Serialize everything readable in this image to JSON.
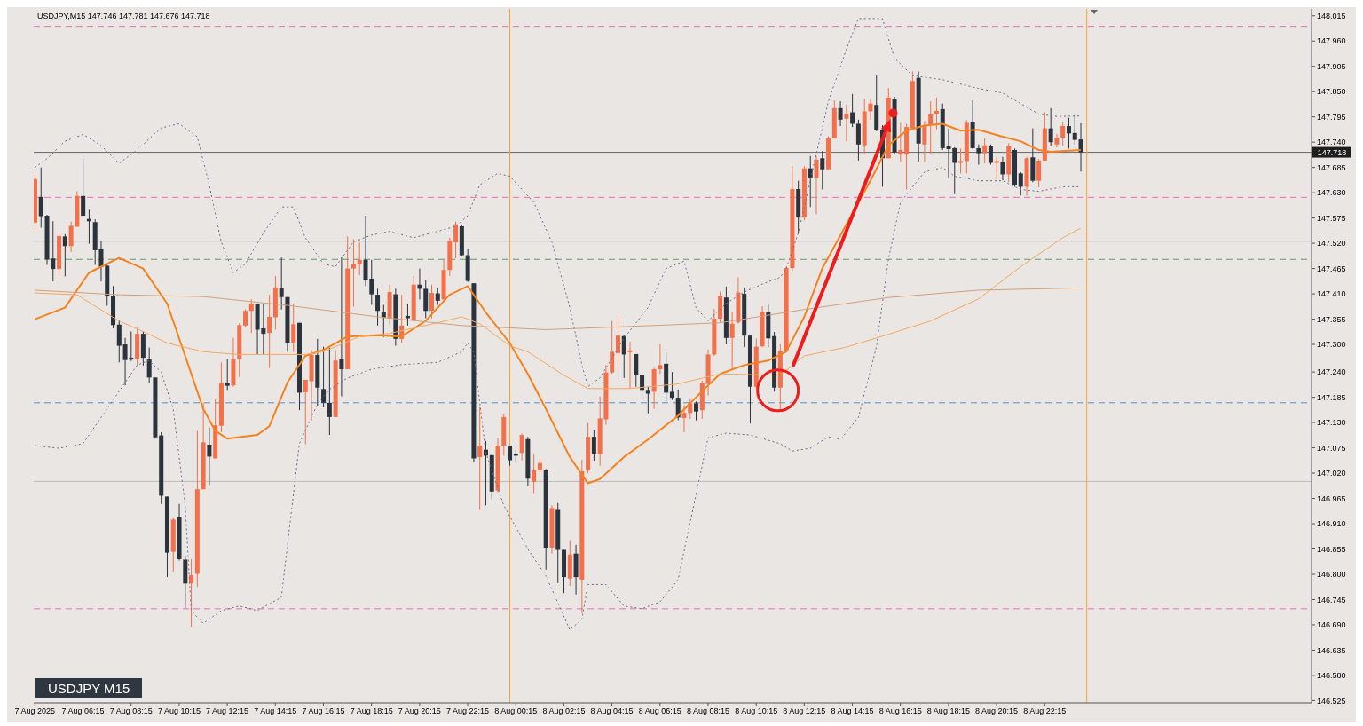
{
  "chart_data": {
    "type": "candlestick",
    "title": "USDJPY,M15 147.746 147.781 147.676 147.718",
    "x": [
      "2025-08-07T04:15",
      "2025-08-07T04:30",
      "2025-08-07T04:45",
      "2025-08-07T05:00",
      "2025-08-07T05:15",
      "2025-08-07T05:30",
      "2025-08-07T05:45",
      "2025-08-07T06:00",
      "2025-08-07T06:15",
      "2025-08-07T06:30",
      "2025-08-07T06:45",
      "2025-08-07T07:00",
      "2025-08-07T07:15",
      "2025-08-07T07:30",
      "2025-08-07T07:45",
      "2025-08-07T08:00",
      "2025-08-07T08:15",
      "2025-08-07T08:30",
      "2025-08-07T08:45",
      "2025-08-07T09:00",
      "2025-08-07T09:15",
      "2025-08-07T09:30",
      "2025-08-07T09:45",
      "2025-08-07T10:00",
      "2025-08-07T10:15",
      "2025-08-07T10:30",
      "2025-08-07T10:45",
      "2025-08-07T11:00",
      "2025-08-07T11:15",
      "2025-08-07T11:30",
      "2025-08-07T11:45",
      "2025-08-07T12:00",
      "2025-08-07T12:15",
      "2025-08-07T12:30",
      "2025-08-07T12:45",
      "2025-08-07T13:00",
      "2025-08-07T13:15",
      "2025-08-07T13:30",
      "2025-08-07T13:45",
      "2025-08-07T14:00",
      "2025-08-07T14:15",
      "2025-08-07T14:30",
      "2025-08-07T14:45",
      "2025-08-07T15:00",
      "2025-08-07T15:15",
      "2025-08-07T15:30",
      "2025-08-07T15:45",
      "2025-08-07T16:00",
      "2025-08-07T16:15",
      "2025-08-07T16:30",
      "2025-08-07T16:45",
      "2025-08-07T17:00",
      "2025-08-07T17:15",
      "2025-08-07T17:30",
      "2025-08-07T17:45",
      "2025-08-07T18:00",
      "2025-08-07T18:15",
      "2025-08-07T18:30",
      "2025-08-07T18:45",
      "2025-08-07T19:00",
      "2025-08-07T19:15",
      "2025-08-07T19:30",
      "2025-08-07T19:45",
      "2025-08-07T20:00",
      "2025-08-07T20:15",
      "2025-08-07T20:30",
      "2025-08-07T20:45",
      "2025-08-07T21:00",
      "2025-08-07T21:15",
      "2025-08-07T21:30",
      "2025-08-07T21:45",
      "2025-08-07T22:00",
      "2025-08-07T22:15",
      "2025-08-07T22:30",
      "2025-08-07T22:45",
      "2025-08-07T23:00",
      "2025-08-07T23:15",
      "2025-08-07T23:30",
      "2025-08-07T23:45",
      "2025-08-08T00:00",
      "2025-08-08T00:15",
      "2025-08-08T00:30",
      "2025-08-08T00:45",
      "2025-08-08T01:00",
      "2025-08-08T01:15",
      "2025-08-08T01:30",
      "2025-08-08T01:45",
      "2025-08-08T02:00",
      "2025-08-08T02:15",
      "2025-08-08T02:30",
      "2025-08-08T02:45",
      "2025-08-08T03:00",
      "2025-08-08T03:15",
      "2025-08-08T03:30",
      "2025-08-08T03:45",
      "2025-08-08T04:00",
      "2025-08-08T04:15",
      "2025-08-08T04:30",
      "2025-08-08T04:45",
      "2025-08-08T05:00",
      "2025-08-08T05:15",
      "2025-08-08T05:30",
      "2025-08-08T05:45",
      "2025-08-08T06:00",
      "2025-08-08T06:15",
      "2025-08-08T06:30",
      "2025-08-08T06:45",
      "2025-08-08T07:00",
      "2025-08-08T07:15",
      "2025-08-08T07:30",
      "2025-08-08T07:45",
      "2025-08-08T08:00",
      "2025-08-08T08:15",
      "2025-08-08T08:30",
      "2025-08-08T08:45",
      "2025-08-08T09:00",
      "2025-08-08T09:15",
      "2025-08-08T09:30",
      "2025-08-08T09:45",
      "2025-08-08T10:00",
      "2025-08-08T10:15",
      "2025-08-08T10:30",
      "2025-08-08T10:45",
      "2025-08-08T11:00",
      "2025-08-08T11:15",
      "2025-08-08T11:30",
      "2025-08-08T11:45",
      "2025-08-08T12:00",
      "2025-08-08T12:15",
      "2025-08-08T12:30",
      "2025-08-08T12:45",
      "2025-08-08T13:00",
      "2025-08-08T13:15",
      "2025-08-08T13:30",
      "2025-08-08T13:45",
      "2025-08-08T14:00",
      "2025-08-08T14:15",
      "2025-08-08T14:30",
      "2025-08-08T14:45",
      "2025-08-08T15:00",
      "2025-08-08T15:15",
      "2025-08-08T15:30",
      "2025-08-08T15:45",
      "2025-08-08T16:00",
      "2025-08-08T16:15",
      "2025-08-08T16:30",
      "2025-08-08T16:45",
      "2025-08-08T17:00",
      "2025-08-08T17:15",
      "2025-08-08T17:30",
      "2025-08-08T17:45",
      "2025-08-08T18:00",
      "2025-08-08T18:15",
      "2025-08-08T18:30",
      "2025-08-08T18:45",
      "2025-08-08T19:00",
      "2025-08-08T19:15",
      "2025-08-08T19:30",
      "2025-08-08T19:45",
      "2025-08-08T20:00",
      "2025-08-08T20:15",
      "2025-08-08T20:30",
      "2025-08-08T20:45",
      "2025-08-08T21:00",
      "2025-08-08T21:15",
      "2025-08-08T21:30",
      "2025-08-08T21:45",
      "2025-08-08T22:00",
      "2025-08-08T22:15",
      "2025-08-08T22:30",
      "2025-08-08T22:45",
      "2025-08-08T23:00",
      "2025-08-08T23:15",
      "2025-08-08T23:30",
      "2025-08-08T23:45"
    ],
    "ohlc": [
      [
        147.565,
        147.67,
        147.55,
        147.66
      ],
      [
        147.621,
        147.685,
        147.554,
        147.579
      ],
      [
        147.58,
        147.582,
        147.473,
        147.485
      ],
      [
        147.487,
        147.568,
        147.437,
        147.464
      ],
      [
        147.464,
        147.547,
        147.448,
        147.536
      ],
      [
        147.535,
        147.54,
        147.448,
        147.514
      ],
      [
        147.514,
        147.567,
        147.501,
        147.558
      ],
      [
        147.556,
        147.633,
        147.556,
        147.623
      ],
      [
        147.623,
        147.704,
        147.58,
        147.58
      ],
      [
        147.573,
        147.593,
        147.519,
        147.568
      ],
      [
        147.566,
        147.572,
        147.473,
        147.505
      ],
      [
        147.507,
        147.526,
        147.437,
        147.469
      ],
      [
        147.471,
        147.476,
        147.384,
        147.406
      ],
      [
        147.406,
        147.427,
        147.335,
        147.342
      ],
      [
        147.343,
        147.353,
        147.261,
        147.297
      ],
      [
        147.3,
        147.314,
        147.211,
        147.266
      ],
      [
        147.271,
        147.328,
        147.264,
        147.267
      ],
      [
        147.268,
        147.338,
        147.254,
        147.323
      ],
      [
        147.323,
        147.328,
        147.254,
        147.271
      ],
      [
        147.268,
        147.293,
        147.215,
        147.228
      ],
      [
        147.228,
        147.228,
        147.095,
        147.098
      ],
      [
        147.102,
        147.109,
        146.953,
        146.971
      ],
      [
        146.969,
        146.969,
        146.794,
        146.847
      ],
      [
        146.849,
        146.922,
        146.805,
        146.919
      ],
      [
        146.924,
        146.953,
        146.83,
        146.833
      ],
      [
        146.832,
        146.84,
        146.727,
        146.78
      ],
      [
        146.78,
        146.833,
        146.685,
        146.798
      ],
      [
        146.801,
        147.112,
        146.773,
        146.985
      ],
      [
        146.985,
        147.173,
        146.985,
        147.087
      ],
      [
        147.082,
        147.119,
        146.992,
        147.056
      ],
      [
        147.052,
        147.181,
        147.052,
        147.124
      ],
      [
        147.123,
        147.261,
        147.109,
        147.215
      ],
      [
        147.217,
        147.268,
        147.201,
        147.21
      ],
      [
        147.211,
        147.314,
        147.208,
        147.268
      ],
      [
        147.268,
        147.346,
        147.229,
        147.342
      ],
      [
        147.341,
        147.376,
        147.338,
        147.373
      ],
      [
        147.373,
        147.398,
        147.325,
        147.389
      ],
      [
        147.389,
        147.389,
        147.277,
        147.332
      ],
      [
        147.335,
        147.389,
        147.277,
        147.323
      ],
      [
        147.325,
        147.408,
        147.249,
        147.36
      ],
      [
        147.359,
        147.449,
        147.332,
        147.424
      ],
      [
        147.423,
        147.489,
        147.376,
        147.403
      ],
      [
        147.403,
        147.403,
        147.284,
        147.303
      ],
      [
        147.303,
        147.389,
        147.284,
        147.344
      ],
      [
        147.347,
        147.347,
        147.157,
        147.195
      ],
      [
        147.196,
        147.223,
        147.083,
        147.223
      ],
      [
        147.22,
        147.288,
        147.134,
        147.277
      ],
      [
        147.277,
        147.312,
        147.166,
        147.206
      ],
      [
        147.203,
        147.295,
        147.163,
        147.173
      ],
      [
        147.173,
        147.293,
        147.103,
        147.142
      ],
      [
        147.142,
        147.287,
        147.142,
        147.265
      ],
      [
        147.268,
        147.489,
        147.187,
        147.246
      ],
      [
        147.246,
        147.535,
        147.246,
        147.465
      ],
      [
        147.465,
        147.529,
        147.382,
        147.475
      ],
      [
        147.475,
        147.522,
        147.451,
        147.484
      ],
      [
        147.484,
        147.58,
        147.427,
        147.441
      ],
      [
        147.443,
        147.484,
        147.386,
        147.409
      ],
      [
        147.408,
        147.421,
        147.341,
        147.373
      ],
      [
        147.37,
        147.386,
        147.316,
        147.358
      ],
      [
        147.357,
        147.43,
        147.344,
        147.414
      ],
      [
        147.409,
        147.421,
        147.297,
        147.312
      ],
      [
        147.312,
        147.408,
        147.303,
        147.341
      ],
      [
        147.362,
        147.389,
        147.341,
        147.357
      ],
      [
        147.354,
        147.449,
        147.351,
        147.43
      ],
      [
        147.43,
        147.465,
        147.398,
        147.421
      ],
      [
        147.421,
        147.44,
        147.357,
        147.373
      ],
      [
        147.373,
        147.43,
        147.357,
        147.412
      ],
      [
        147.411,
        147.424,
        147.386,
        147.395
      ],
      [
        147.398,
        147.484,
        147.395,
        147.462
      ],
      [
        147.462,
        147.532,
        147.449,
        147.526
      ],
      [
        147.522,
        147.567,
        147.487,
        147.561
      ],
      [
        147.557,
        147.561,
        147.491,
        147.494
      ],
      [
        147.494,
        147.507,
        147.436,
        147.438
      ],
      [
        147.433,
        147.433,
        147.045,
        147.052
      ],
      [
        147.055,
        147.163,
        146.94,
        147.08
      ],
      [
        147.071,
        147.09,
        146.95,
        147.058
      ],
      [
        147.059,
        147.061,
        146.963,
        146.98
      ],
      [
        146.982,
        147.096,
        146.978,
        147.08
      ],
      [
        147.08,
        147.148,
        147.058,
        147.142
      ],
      [
        147.08,
        147.08,
        147.036,
        147.048
      ],
      [
        147.061,
        147.071,
        147.045,
        147.058
      ],
      [
        147.064,
        147.106,
        147.048,
        147.103
      ],
      [
        147.094,
        147.099,
        146.991,
        147.008
      ],
      [
        147.001,
        147.061,
        146.975,
        147.026
      ],
      [
        147.026,
        147.052,
        147.017,
        147.042
      ],
      [
        147.026,
        147.029,
        146.81,
        146.858
      ],
      [
        146.858,
        146.95,
        146.845,
        146.944
      ],
      [
        146.94,
        146.955,
        146.781,
        146.853
      ],
      [
        146.853,
        146.853,
        146.759,
        146.794
      ],
      [
        146.791,
        146.874,
        146.775,
        146.843
      ],
      [
        146.845,
        146.864,
        146.756,
        146.794
      ],
      [
        146.788,
        147.049,
        146.715,
        147.024
      ],
      [
        147.026,
        147.129,
        147.02,
        147.099
      ],
      [
        147.099,
        147.114,
        147.047,
        147.061
      ],
      [
        147.061,
        147.187,
        147.036,
        147.139
      ],
      [
        147.137,
        147.255,
        147.125,
        147.239
      ],
      [
        147.239,
        147.351,
        147.236,
        147.284
      ],
      [
        147.281,
        147.363,
        147.249,
        147.319
      ],
      [
        147.318,
        147.319,
        147.227,
        147.278
      ],
      [
        147.283,
        147.306,
        147.204,
        147.287
      ],
      [
        147.279,
        147.279,
        147.208,
        147.233
      ],
      [
        147.233,
        147.233,
        147.173,
        147.201
      ],
      [
        147.201,
        147.208,
        147.15,
        147.193
      ],
      [
        147.197,
        147.249,
        147.16,
        147.246
      ],
      [
        147.246,
        147.3,
        147.236,
        147.255
      ],
      [
        147.258,
        147.284,
        147.176,
        147.195
      ],
      [
        147.197,
        147.24,
        147.179,
        147.184
      ],
      [
        147.184,
        147.202,
        147.135,
        147.141
      ],
      [
        147.14,
        147.167,
        147.109,
        147.151
      ],
      [
        147.151,
        147.183,
        147.138,
        147.172
      ],
      [
        147.172,
        147.176,
        147.135,
        147.154
      ],
      [
        147.157,
        147.221,
        147.138,
        147.217
      ],
      [
        147.214,
        147.289,
        147.189,
        147.278
      ],
      [
        147.278,
        147.377,
        147.275,
        147.356
      ],
      [
        147.356,
        147.415,
        147.348,
        147.405
      ],
      [
        147.402,
        147.426,
        147.3,
        147.314
      ],
      [
        147.314,
        147.37,
        147.246,
        147.345
      ],
      [
        147.348,
        147.446,
        147.345,
        147.413
      ],
      [
        147.41,
        147.424,
        147.294,
        147.319
      ],
      [
        147.319,
        147.319,
        147.128,
        147.208
      ],
      [
        147.208,
        147.313,
        147.205,
        147.295
      ],
      [
        147.296,
        147.383,
        147.294,
        147.37
      ],
      [
        147.37,
        147.389,
        147.294,
        147.313
      ],
      [
        147.318,
        147.327,
        147.197,
        147.206
      ],
      [
        147.206,
        147.3,
        147.159,
        147.286
      ],
      [
        147.286,
        147.469,
        147.284,
        147.466
      ],
      [
        147.466,
        147.688,
        147.46,
        147.638
      ],
      [
        147.638,
        147.656,
        147.541,
        147.576
      ],
      [
        147.576,
        147.688,
        147.57,
        147.683
      ],
      [
        147.683,
        147.71,
        147.599,
        147.662
      ],
      [
        147.663,
        147.71,
        147.583,
        147.702
      ],
      [
        147.705,
        147.721,
        147.637,
        147.681
      ],
      [
        147.681,
        147.753,
        147.681,
        147.748
      ],
      [
        147.748,
        147.831,
        147.748,
        147.814
      ],
      [
        147.814,
        147.829,
        147.775,
        147.789
      ],
      [
        147.791,
        147.822,
        147.742,
        147.802
      ],
      [
        147.805,
        147.845,
        147.773,
        147.78
      ],
      [
        147.78,
        147.789,
        147.7,
        147.735
      ],
      [
        147.733,
        147.835,
        147.713,
        147.807
      ],
      [
        147.807,
        147.834,
        147.789,
        147.824
      ],
      [
        147.821,
        147.885,
        147.764,
        147.767
      ],
      [
        147.767,
        147.777,
        147.643,
        147.705
      ],
      [
        147.705,
        147.858,
        147.705,
        147.837
      ],
      [
        147.835,
        147.839,
        147.713,
        147.718
      ],
      [
        147.714,
        147.782,
        147.697,
        147.723
      ],
      [
        147.713,
        147.78,
        147.637,
        147.773
      ],
      [
        147.77,
        147.894,
        147.77,
        147.873
      ],
      [
        147.88,
        147.894,
        147.697,
        147.737
      ],
      [
        147.735,
        147.786,
        147.697,
        147.775
      ],
      [
        147.777,
        147.829,
        147.713,
        147.801
      ],
      [
        147.801,
        147.837,
        147.767,
        147.808
      ],
      [
        147.812,
        147.824,
        147.723,
        147.727
      ],
      [
        147.731,
        147.77,
        147.662,
        147.725
      ],
      [
        147.727,
        147.729,
        147.627,
        147.695
      ],
      [
        147.695,
        147.726,
        147.672,
        147.699
      ],
      [
        147.699,
        147.788,
        147.672,
        147.782
      ],
      [
        147.784,
        147.831,
        147.725,
        147.727
      ],
      [
        147.727,
        147.735,
        147.691,
        147.716
      ],
      [
        147.716,
        147.748,
        147.694,
        147.733
      ],
      [
        147.731,
        147.735,
        147.691,
        147.695
      ],
      [
        147.695,
        147.708,
        147.659,
        147.699
      ],
      [
        147.697,
        147.708,
        147.657,
        147.67
      ],
      [
        147.67,
        147.738,
        147.653,
        147.732
      ],
      [
        147.723,
        147.726,
        147.643,
        147.646
      ],
      [
        147.672,
        147.675,
        147.624,
        147.643
      ],
      [
        147.643,
        147.708,
        147.624,
        147.705
      ],
      [
        147.707,
        147.77,
        147.653,
        147.656
      ],
      [
        147.656,
        147.703,
        147.642,
        147.7
      ],
      [
        147.7,
        147.805,
        147.7,
        147.77
      ],
      [
        147.77,
        147.814,
        147.732,
        147.74
      ],
      [
        147.735,
        147.758,
        147.729,
        147.75
      ],
      [
        147.75,
        147.783,
        147.732,
        147.775
      ],
      [
        147.775,
        147.793,
        147.726,
        147.759
      ],
      [
        147.76,
        147.799,
        147.735,
        147.745
      ],
      [
        147.746,
        147.781,
        147.676,
        147.718
      ]
    ],
    "colors": [
      "#f4704a",
      "#2b333d",
      "#2b333d",
      "#2b333d",
      "#f4704a",
      "#2b333d",
      "#f4704a",
      "#f4704a",
      "#2b333d",
      "#2b333d",
      "#2b333d",
      "#2b333d",
      "#2b333d",
      "#2b333d",
      "#2b333d",
      "#2b333d",
      "#2b333d",
      "#f4704a",
      "#2b333d",
      "#2b333d",
      "#2b333d",
      "#2b333d",
      "#2b333d",
      "#f4704a",
      "#2b333d",
      "#2b333d",
      "#f4704a",
      "#f4704a",
      "#f4704a",
      "#2b333d",
      "#f4704a",
      "#f4704a",
      "#2b333d",
      "#f4704a",
      "#f4704a",
      "#f4704a",
      "#f4704a",
      "#2b333d",
      "#2b333d",
      "#f4704a",
      "#f4704a",
      "#2b333d",
      "#2b333d",
      "#f4704a",
      "#2b333d",
      "#f4704a",
      "#f4704a",
      "#2b333d",
      "#2b333d",
      "#2b333d",
      "#f4704a",
      "#2b333d",
      "#f4704a",
      "#f4704a",
      "#f4704a",
      "#2b333d",
      "#2b333d",
      "#2b333d",
      "#2b333d",
      "#f4704a",
      "#2b333d",
      "#f4704a",
      "#2b333d",
      "#f4704a",
      "#2b333d",
      "#2b333d",
      "#f4704a",
      "#2b333d",
      "#f4704a",
      "#f4704a",
      "#f4704a",
      "#2b333d",
      "#2b333d",
      "#2b333d",
      "#f4704a",
      "#2b333d",
      "#2b333d",
      "#f4704a",
      "#f4704a",
      "#2b333d",
      "#2b333d",
      "#f4704a",
      "#2b333d",
      "#f4704a",
      "#f4704a",
      "#2b333d",
      "#f4704a",
      "#2b333d",
      "#2b333d",
      "#f4704a",
      "#2b333d",
      "#f4704a",
      "#f4704a",
      "#2b333d",
      "#f4704a",
      "#f4704a",
      "#f4704a",
      "#f4704a",
      "#2b333d",
      "#f4704a",
      "#2b333d",
      "#2b333d",
      "#2b333d",
      "#f4704a",
      "#f4704a",
      "#2b333d",
      "#2b333d",
      "#2b333d",
      "#f4704a",
      "#f4704a",
      "#2b333d",
      "#f4704a",
      "#f4704a",
      "#f4704a",
      "#f4704a",
      "#2b333d",
      "#f4704a",
      "#f4704a",
      "#2b333d",
      "#2b333d",
      "#f4704a",
      "#f4704a",
      "#2b333d",
      "#2b333d",
      "#f4704a",
      "#f4704a",
      "#f4704a",
      "#2b333d",
      "#f4704a",
      "#2b333d",
      "#f4704a",
      "#2b333d",
      "#f4704a",
      "#f4704a",
      "#2b333d",
      "#f4704a",
      "#2b333d",
      "#2b333d",
      "#f4704a",
      "#f4704a",
      "#2b333d",
      "#2b333d",
      "#f4704a",
      "#2b333d",
      "#f4704a",
      "#f4704a",
      "#f4704a",
      "#2b333d",
      "#f4704a",
      "#f4704a",
      "#f4704a",
      "#2b333d",
      "#2b333d",
      "#2b333d",
      "#f4704a",
      "#f4704a",
      "#2b333d",
      "#2b333d",
      "#f4704a",
      "#2b333d",
      "#f4704a",
      "#2b333d",
      "#f4704a",
      "#2b333d",
      "#2b333d",
      "#f4704a",
      "#2b333d",
      "#f4704a",
      "#f4704a",
      "#2b333d",
      "#f4704a",
      "#f4704a",
      "#2b333d",
      "#2b333d",
      "#2b333d"
    ],
    "series": [
      {
        "type": "line",
        "color": "#f5821f",
        "line_style": "solid",
        "x": [
          "2025-08-07T04:15",
          "2025-08-07T05:30",
          "2025-08-07T06:30",
          "2025-08-07T07:45",
          "2025-08-07T08:45",
          "2025-08-07T09:45",
          "2025-08-07T10:30",
          "2025-08-07T11:15",
          "2025-08-07T11:45",
          "2025-08-07T12:15",
          "2025-08-07T13:30",
          "2025-08-07T14:00",
          "2025-08-07T14:45",
          "2025-08-07T15:30",
          "2025-08-07T16:15",
          "2025-08-07T17:15",
          "2025-08-07T18:30",
          "2025-08-07T19:30",
          "2025-08-07T20:30",
          "2025-08-07T21:30",
          "2025-08-07T22:15",
          "2025-08-07T23:00",
          "2025-08-08T00:00",
          "2025-08-08T00:45",
          "2025-08-08T01:30",
          "2025-08-08T02:30",
          "2025-08-08T03:15",
          "2025-08-08T03:45",
          "2025-08-08T04:45",
          "2025-08-08T05:45",
          "2025-08-08T07:00",
          "2025-08-08T08:00",
          "2025-08-08T08:45",
          "2025-08-08T09:45",
          "2025-08-08T10:45",
          "2025-08-08T11:30",
          "2025-08-08T12:15",
          "2025-08-08T13:00",
          "2025-08-08T14:00",
          "2025-08-08T15:00",
          "2025-08-08T15:45",
          "2025-08-08T16:30",
          "2025-08-08T17:15",
          "2025-08-08T18:00",
          "2025-08-08T18:45",
          "2025-08-08T19:30",
          "2025-08-08T20:30",
          "2025-08-08T21:15",
          "2025-08-08T22:00",
          "2025-08-08T22:30",
          "2025-08-08T23:45"
        ],
        "values": [
          147.355,
          147.38,
          147.456,
          147.488,
          147.465,
          147.389,
          147.275,
          147.16,
          147.112,
          147.095,
          147.103,
          147.122,
          147.217,
          147.275,
          147.288,
          147.317,
          147.32,
          147.317,
          147.351,
          147.408,
          147.427,
          147.37,
          147.303,
          147.236,
          147.16,
          147.055,
          146.998,
          147.007,
          147.055,
          147.093,
          147.145,
          147.198,
          147.236,
          147.255,
          147.265,
          147.284,
          147.36,
          147.465,
          147.561,
          147.656,
          147.733,
          147.765,
          147.776,
          147.78,
          147.765,
          147.767,
          147.752,
          147.742,
          147.723,
          147.719,
          147.723
        ]
      },
      {
        "type": "line",
        "color": "#f7a860",
        "line_style": "solid",
        "x": [
          "2025-08-07T04:15",
          "2025-08-07T06:00",
          "2025-08-07T07:45",
          "2025-08-07T08:45",
          "2025-08-07T09:45",
          "2025-08-07T11:15",
          "2025-08-07T12:45",
          "2025-08-07T15:30",
          "2025-08-07T16:15",
          "2025-08-07T17:45",
          "2025-08-07T19:00",
          "2025-08-07T21:00",
          "2025-08-07T22:00",
          "2025-08-07T22:45",
          "2025-08-08T00:00",
          "2025-08-08T00:45",
          "2025-08-08T02:15",
          "2025-08-08T03:15",
          "2025-08-08T05:00",
          "2025-08-08T07:00",
          "2025-08-08T08:45",
          "2025-08-08T11:15",
          "2025-08-08T12:15",
          "2025-08-08T14:00",
          "2025-08-08T15:45",
          "2025-08-08T17:30",
          "2025-08-08T19:30",
          "2025-08-08T21:15",
          "2025-08-08T23:00",
          "2025-08-08T23:45"
        ],
        "values": [
          147.412,
          147.408,
          147.351,
          147.328,
          147.303,
          147.284,
          147.278,
          147.278,
          147.284,
          147.317,
          147.324,
          147.347,
          147.36,
          147.345,
          147.297,
          147.284,
          147.233,
          147.204,
          147.204,
          147.214,
          147.236,
          147.233,
          147.275,
          147.294,
          147.322,
          147.351,
          147.399,
          147.469,
          147.532,
          147.553
        ]
      },
      {
        "type": "line",
        "color": "#d4a07a",
        "line_style": "solid",
        "x": [
          "2025-08-07T04:15",
          "2025-08-07T07:45",
          "2025-08-07T11:15",
          "2025-08-07T14:45",
          "2025-08-07T18:30",
          "2025-08-07T22:00",
          "2025-08-08T01:30",
          "2025-08-08T05:00",
          "2025-08-08T08:45",
          "2025-08-08T12:15",
          "2025-08-08T15:45",
          "2025-08-08T19:30",
          "2025-08-08T23:45"
        ],
        "values": [
          147.418,
          147.408,
          147.404,
          147.385,
          147.36,
          147.341,
          147.332,
          147.339,
          147.347,
          147.376,
          147.402,
          147.418,
          147.423
        ]
      },
      {
        "type": "line",
        "color": "#6f6a8c",
        "line_style": "dotted",
        "x": [
          "2025-08-07T04:15",
          "2025-08-07T04:45",
          "2025-08-07T05:30",
          "2025-08-07T06:15",
          "2025-08-07T07:00",
          "2025-08-07T07:45",
          "2025-08-07T08:30",
          "2025-08-07T09:30",
          "2025-08-07T10:15",
          "2025-08-07T11:00",
          "2025-08-07T11:30",
          "2025-08-07T12:00",
          "2025-08-07T12:30",
          "2025-08-07T13:00",
          "2025-08-07T13:45",
          "2025-08-07T14:30",
          "2025-08-07T15:00",
          "2025-08-07T15:30",
          "2025-08-07T16:15",
          "2025-08-07T16:45",
          "2025-08-07T17:30",
          "2025-08-07T18:15",
          "2025-08-07T19:00",
          "2025-08-07T20:00",
          "2025-08-07T21:00",
          "2025-08-07T21:45",
          "2025-08-07T22:15",
          "2025-08-07T22:45",
          "2025-08-07T23:30",
          "2025-08-08T00:00",
          "2025-08-08T01:00",
          "2025-08-08T01:45",
          "2025-08-08T02:30",
          "2025-08-08T03:00",
          "2025-08-08T03:15",
          "2025-08-08T03:45",
          "2025-08-08T04:45",
          "2025-08-08T05:45",
          "2025-08-08T06:30",
          "2025-08-08T07:15",
          "2025-08-08T07:45",
          "2025-08-08T08:15",
          "2025-08-08T09:00",
          "2025-08-08T09:45",
          "2025-08-08T10:30",
          "2025-08-08T11:15",
          "2025-08-08T11:30",
          "2025-08-08T12:00",
          "2025-08-08T12:30",
          "2025-08-08T13:15",
          "2025-08-08T14:00",
          "2025-08-08T14:30",
          "2025-08-08T15:30",
          "2025-08-08T16:00",
          "2025-08-08T16:45",
          "2025-08-08T18:00",
          "2025-08-08T19:30",
          "2025-08-08T20:30",
          "2025-08-08T21:15",
          "2025-08-08T22:00",
          "2025-08-08T22:45",
          "2025-08-08T23:45"
        ],
        "values": [
          147.685,
          147.704,
          147.742,
          147.757,
          147.733,
          147.694,
          147.723,
          147.771,
          147.78,
          147.752,
          147.647,
          147.523,
          147.456,
          147.475,
          147.542,
          147.599,
          147.599,
          147.532,
          147.475,
          147.469,
          147.523,
          147.538,
          147.546,
          147.532,
          147.546,
          147.557,
          147.58,
          147.647,
          147.672,
          147.666,
          147.609,
          147.523,
          147.38,
          147.256,
          147.208,
          147.227,
          147.313,
          147.38,
          147.465,
          147.481,
          147.38,
          147.351,
          147.389,
          147.414,
          147.431,
          147.446,
          147.465,
          147.542,
          147.656,
          147.828,
          147.942,
          148.009,
          148.009,
          147.923,
          147.885,
          147.876,
          147.857,
          147.847,
          147.824,
          147.801,
          147.796,
          147.797
        ]
      },
      {
        "type": "line",
        "color": "#6f6a8c",
        "line_style": "dotted",
        "x": [
          "2025-08-07T04:15",
          "2025-08-07T05:15",
          "2025-08-07T06:15",
          "2025-08-07T07:15",
          "2025-08-07T08:30",
          "2025-08-07T09:00",
          "2025-08-07T09:30",
          "2025-08-07T10:00",
          "2025-08-07T10:30",
          "2025-08-07T10:45",
          "2025-08-07T11:15",
          "2025-08-07T12:00",
          "2025-08-07T12:45",
          "2025-08-07T13:30",
          "2025-08-07T14:30",
          "2025-08-07T15:15",
          "2025-08-07T16:00",
          "2025-08-07T16:30",
          "2025-08-07T17:15",
          "2025-08-07T18:15",
          "2025-08-07T19:30",
          "2025-08-07T21:00",
          "2025-08-07T22:00",
          "2025-08-07T22:15",
          "2025-08-07T22:30",
          "2025-08-07T23:00",
          "2025-08-07T23:45",
          "2025-08-08T00:45",
          "2025-08-08T01:30",
          "2025-08-08T02:30",
          "2025-08-08T03:00",
          "2025-08-08T03:15",
          "2025-08-08T04:00",
          "2025-08-08T04:45",
          "2025-08-08T05:30",
          "2025-08-08T06:15",
          "2025-08-08T07:00",
          "2025-08-08T07:30",
          "2025-08-08T08:15",
          "2025-08-08T09:00",
          "2025-08-08T10:00",
          "2025-08-08T11:15",
          "2025-08-08T11:45",
          "2025-08-08T12:30",
          "2025-08-08T13:15",
          "2025-08-08T13:45",
          "2025-08-08T14:30",
          "2025-08-08T15:15",
          "2025-08-08T15:45",
          "2025-08-08T16:15",
          "2025-08-08T17:15",
          "2025-08-08T18:00",
          "2025-08-08T18:30",
          "2025-08-08T19:30",
          "2025-08-08T20:30",
          "2025-08-08T21:15",
          "2025-08-08T22:00",
          "2025-08-08T23:00",
          "2025-08-08T23:45"
        ],
        "values": [
          147.08,
          147.074,
          147.084,
          147.16,
          147.255,
          147.265,
          147.24,
          147.16,
          146.95,
          146.721,
          146.693,
          146.721,
          146.731,
          146.721,
          146.75,
          147.084,
          147.17,
          147.202,
          147.227,
          147.246,
          147.256,
          147.261,
          147.284,
          147.303,
          147.284,
          147.065,
          146.95,
          146.855,
          146.797,
          146.679,
          146.702,
          146.778,
          146.778,
          146.731,
          146.725,
          146.74,
          146.788,
          146.912,
          147.097,
          147.107,
          147.103,
          147.084,
          147.068,
          147.074,
          147.099,
          147.093,
          147.141,
          147.294,
          147.485,
          147.609,
          147.675,
          147.685,
          147.666,
          147.656,
          147.656,
          147.637,
          147.633,
          147.643,
          147.643
        ]
      }
    ],
    "xlim": [
      "2025-08-07T04:12",
      "2025-08-09T09:21"
    ],
    "xticks": [
      {
        "value": "2025-08-07T04:15",
        "label": "7 Aug 2025"
      },
      {
        "value": "2025-08-07T06:15",
        "label": "7 Aug 06:15"
      },
      {
        "value": "2025-08-07T08:15",
        "label": "7 Aug 08:15"
      },
      {
        "value": "2025-08-07T10:15",
        "label": "7 Aug 10:15"
      },
      {
        "value": "2025-08-07T12:15",
        "label": "7 Aug 12:15"
      },
      {
        "value": "2025-08-07T14:15",
        "label": "7 Aug 14:15"
      },
      {
        "value": "2025-08-07T16:15",
        "label": "7 Aug 16:15"
      },
      {
        "value": "2025-08-07T18:15",
        "label": "7 Aug 18:15"
      },
      {
        "value": "2025-08-07T20:15",
        "label": "7 Aug 20:15"
      },
      {
        "value": "2025-08-07T22:15",
        "label": "7 Aug 22:15"
      },
      {
        "value": "2025-08-08T00:15",
        "label": "8 Aug 00:15"
      },
      {
        "value": "2025-08-08T02:15",
        "label": "8 Aug 02:15"
      },
      {
        "value": "2025-08-08T04:15",
        "label": "8 Aug 04:15"
      },
      {
        "value": "2025-08-08T06:15",
        "label": "8 Aug 06:15"
      },
      {
        "value": "2025-08-08T08:15",
        "label": "8 Aug 08:15"
      },
      {
        "value": "2025-08-08T10:15",
        "label": "8 Aug 10:15"
      },
      {
        "value": "2025-08-08T12:15",
        "label": "8 Aug 12:15"
      },
      {
        "value": "2025-08-08T14:15",
        "label": "8 Aug 14:15"
      },
      {
        "value": "2025-08-08T16:15",
        "label": "8 Aug 16:15"
      },
      {
        "value": "2025-08-08T18:15",
        "label": "8 Aug 18:15"
      },
      {
        "value": "2025-08-08T20:15",
        "label": "8 Aug 20:15"
      },
      {
        "value": "2025-08-08T22:15",
        "label": "8 Aug 22:15"
      }
    ],
    "ylim": [
      146.52,
      148.03
    ],
    "yticks": [
      148.015,
      {
        "value": 147.96,
        "label": "147.960"
      },
      147.905,
      {
        "value": 147.85,
        "label": "147.850"
      },
      147.795,
      {
        "value": 147.74,
        "label": "147.740"
      },
      147.685,
      {
        "value": 147.63,
        "label": "147.630"
      },
      147.575,
      {
        "value": 147.52,
        "label": "147.520"
      },
      147.465,
      {
        "value": 147.41,
        "label": "147.410"
      },
      147.355,
      {
        "value": 147.3,
        "label": "147.300"
      },
      {
        "value": 147.24,
        "label": "147.240"
      },
      147.185,
      {
        "value": 147.13,
        "label": "147.130"
      },
      147.075,
      {
        "value": 147.02,
        "label": "147.020"
      },
      146.965,
      {
        "value": 146.91,
        "label": "146.910"
      },
      146.855,
      {
        "value": 146.8,
        "label": "146.800"
      },
      146.745,
      {
        "value": 146.69,
        "label": "146.690"
      },
      146.635,
      {
        "value": 146.58,
        "label": "146.580"
      },
      146.525
    ],
    "ref_lines": [
      {
        "axis": "y",
        "value": 147.992,
        "color": "#f06bb5",
        "line_style": "dashed"
      },
      {
        "axis": "y",
        "value": 147.62,
        "color": "#f06bb5",
        "line_style": "dashed"
      },
      {
        "axis": "y",
        "value": 146.725,
        "color": "#f06bb5",
        "line_style": "dashed"
      },
      {
        "axis": "y",
        "value": 147.485,
        "color": "#5a9e6e",
        "line_style": "dashed"
      },
      {
        "axis": "y",
        "value": 147.173,
        "color": "#5b8fc9",
        "line_style": "dashed"
      },
      {
        "axis": "y",
        "value": 147.524,
        "color": "#d3d0cd",
        "line_style": "solid"
      },
      {
        "axis": "y",
        "value": 147.002,
        "color": "#bdbab7",
        "line_style": "solid"
      },
      {
        "axis": "y",
        "value": 147.718,
        "color": "#6a6a6a",
        "line_style": "solid",
        "label": "147.718"
      },
      {
        "axis": "x",
        "value": "2025-08-08T00:00",
        "color": "#f7a136",
        "line_style": "solid"
      },
      {
        "axis": "x",
        "value": "2025-08-09T00:00",
        "color": "#f7a136",
        "line_style": "solid"
      }
    ],
    "annotations": [
      "USDJPY M15"
    ],
    "grid": false,
    "legend": false
  }
}
